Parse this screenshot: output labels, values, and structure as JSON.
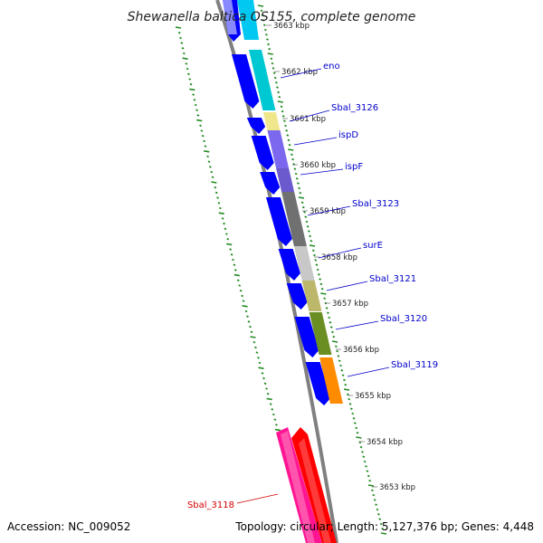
{
  "title": "Shewanella baltica OS155, complete genome",
  "accession": "Accession: NC_009052",
  "summary": "Topology: circular; Length: 5,127,376 bp; Genes: 4,448",
  "colors": {
    "backbone": "#808080",
    "forward_gene": "#0000ff",
    "tick": "#228b22",
    "label_blue": "#0000cc",
    "label_red": "#d40000",
    "cds_shade": "#4fd0d0"
  },
  "kbp_ticks": [
    {
      "label": "3663 kbp",
      "faint": true
    },
    {
      "label": "3662 kbp"
    },
    {
      "label": "3661 kbp"
    },
    {
      "label": "3660 kbp"
    },
    {
      "label": "3659 kbp"
    },
    {
      "label": "3658 kbp"
    },
    {
      "label": "3657 kbp"
    },
    {
      "label": "3656 kbp"
    },
    {
      "label": "3655 kbp"
    },
    {
      "label": "3654 kbp"
    },
    {
      "label": "3653 kbp"
    }
  ],
  "genes": [
    {
      "label": "eno",
      "color": "#00c8d2"
    },
    {
      "label": "Sbal_3126",
      "color": "#f0e68c"
    },
    {
      "label": "ispD",
      "color": "#7b68ee"
    },
    {
      "label": "ispF",
      "color": "#6a5acd"
    },
    {
      "label": "Sbal_3123",
      "color": "#707070"
    },
    {
      "label": "surE",
      "color": "#c8c8c8"
    },
    {
      "label": "Sbal_3121",
      "color": "#bdb76b"
    },
    {
      "label": "Sbal_3120",
      "color": "#6b8e23"
    },
    {
      "label": "Sbal_3119",
      "color": "#ff8c00"
    },
    {
      "label": "Sbal_3118",
      "color": "#ff1493"
    }
  ]
}
